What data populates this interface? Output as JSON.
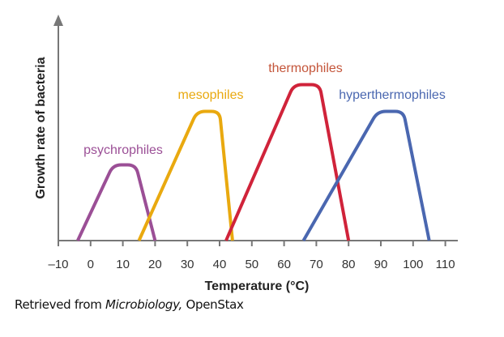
{
  "chart_data": {
    "type": "line",
    "xlabel": "Temperature (°C)",
    "ylabel": "Growth rate of bacteria",
    "xlim": [
      -10,
      115
    ],
    "ylim": [
      0,
      100
    ],
    "xticks": [
      "–10",
      "0",
      "10",
      "20",
      "30",
      "40",
      "50",
      "60",
      "70",
      "80",
      "90",
      "100",
      "110"
    ],
    "xtick_values": [
      -10,
      0,
      10,
      20,
      30,
      40,
      50,
      60,
      70,
      80,
      90,
      100,
      110
    ],
    "grid": false,
    "series": [
      {
        "name": "psychrophiles",
        "color": "#9b4f96",
        "label_color": "#9b4f96",
        "x": [
          -4,
          7,
          14,
          20
        ],
        "y": [
          0,
          34,
          34,
          0
        ]
      },
      {
        "name": "mesophiles",
        "color": "#e9a90f",
        "label_color": "#e9a90f",
        "x": [
          15,
          33,
          40,
          44
        ],
        "y": [
          0,
          58,
          58,
          0
        ]
      },
      {
        "name": "thermophiles",
        "color": "#d0233a",
        "label_color": "#c4553a",
        "x": [
          42,
          63,
          71,
          80
        ],
        "y": [
          0,
          70,
          70,
          0
        ]
      },
      {
        "name": "hyperthermophiles",
        "color": "#4a67b0",
        "label_color": "#4a67b0",
        "x": [
          66,
          89,
          97,
          105
        ],
        "y": [
          0,
          58,
          58,
          0
        ]
      }
    ]
  },
  "caption": {
    "prefix": "Retrieved from ",
    "italic": "Microbiology,",
    "suffix": " OpenStax"
  }
}
